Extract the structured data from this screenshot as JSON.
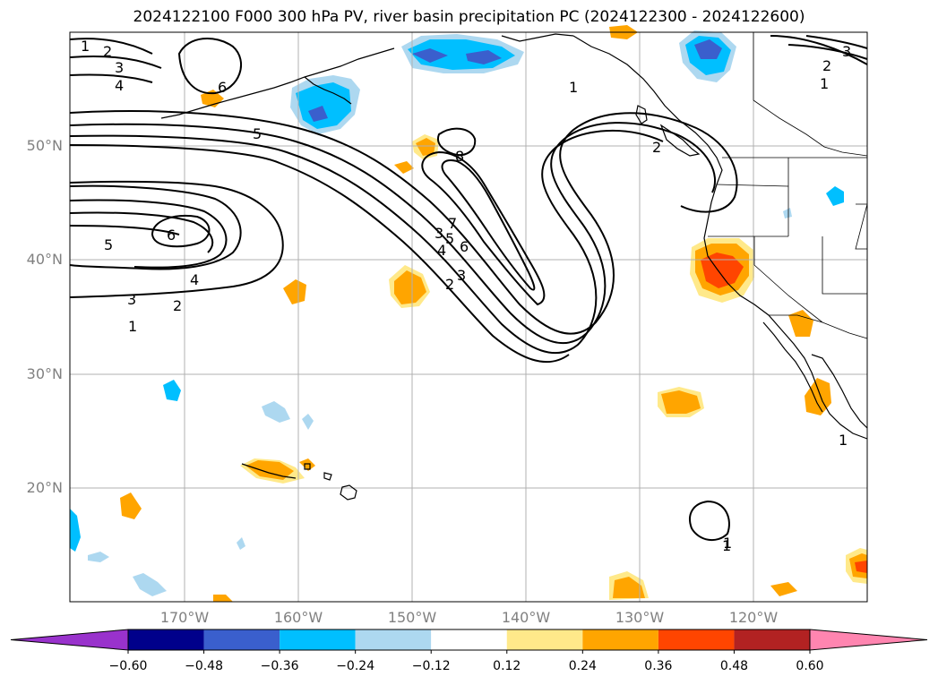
{
  "title": "2024122100 F000 300 hPa PV, river basin precipitation PC (2024122300 - 2024122600)",
  "map": {
    "lat_labels": [
      "50°N",
      "40°N",
      "30°N",
      "20°N"
    ],
    "lon_labels": [
      "170°W",
      "160°W",
      "150°W",
      "140°W",
      "130°W",
      "120°W"
    ],
    "lon_range": [
      -180,
      -110
    ],
    "lat_range": [
      10,
      60
    ],
    "gridlines": true
  },
  "colorbar": {
    "tick_labels": [
      "−0.60",
      "−0.48",
      "−0.36",
      "−0.24",
      "−0.12",
      "0.12",
      "0.24",
      "0.36",
      "0.48",
      "0.60"
    ],
    "levels": [
      -0.6,
      -0.48,
      -0.36,
      -0.24,
      -0.12,
      0.12,
      0.24,
      0.36,
      0.48,
      0.6
    ],
    "colors": [
      "#9932cc",
      "#00008b",
      "#3a5fcd",
      "#00bfff",
      "#add8f0",
      "#ffffff",
      "#ffe98a",
      "#ffa500",
      "#ff4500",
      "#b22222",
      "#ff85b0"
    ],
    "extend": "both"
  },
  "contour_labels": [
    "1",
    "2",
    "3",
    "4",
    "5",
    "6",
    "8",
    "7",
    "6",
    "5",
    "4",
    "3",
    "2",
    "1",
    "6",
    "5",
    "4",
    "3",
    "2",
    "1",
    "2",
    "3",
    "1",
    "2",
    "1",
    "3",
    "1",
    "1"
  ]
}
